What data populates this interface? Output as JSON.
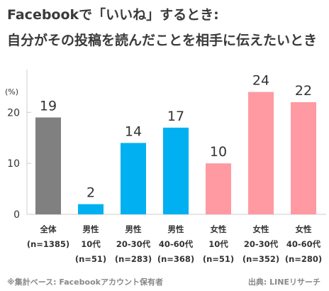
{
  "title_line1": "Facebookで「いいね」するとき:",
  "title_line2": "自分がその投稿を読んだことを相手に伝えたいとき",
  "note": "※集計ベース: Facebookアカウント保有者",
  "source": "出典: LINEリサーチ",
  "colors": {
    "all": "#808080",
    "male": "#00b0f0",
    "female": "#ff9aa2",
    "axis": "#cccccc",
    "text": "#333333"
  },
  "chart_data": {
    "type": "bar",
    "yunit": "(%)",
    "ylim": [
      0,
      27
    ],
    "yticks": [
      0,
      10,
      20
    ],
    "grid": false,
    "categories": [
      {
        "line1": "全体",
        "line2": "(n=1385)",
        "line3": "",
        "group": "all"
      },
      {
        "line1": "男性",
        "line2": "10代",
        "line3": "(n=51)",
        "group": "male"
      },
      {
        "line1": "男性",
        "line2": "20-30代",
        "line3": "(n=283)",
        "group": "male"
      },
      {
        "line1": "男性",
        "line2": "40-60代",
        "line3": "(n=368)",
        "group": "male"
      },
      {
        "line1": "女性",
        "line2": "10代",
        "line3": "(n=51)",
        "group": "female"
      },
      {
        "line1": "女性",
        "line2": "20-30代",
        "line3": "(n=352)",
        "group": "female"
      },
      {
        "line1": "女性",
        "line2": "40-60代",
        "line3": "(n=280)",
        "group": "female"
      }
    ],
    "values": [
      19,
      2,
      14,
      17,
      10,
      24,
      22
    ]
  }
}
